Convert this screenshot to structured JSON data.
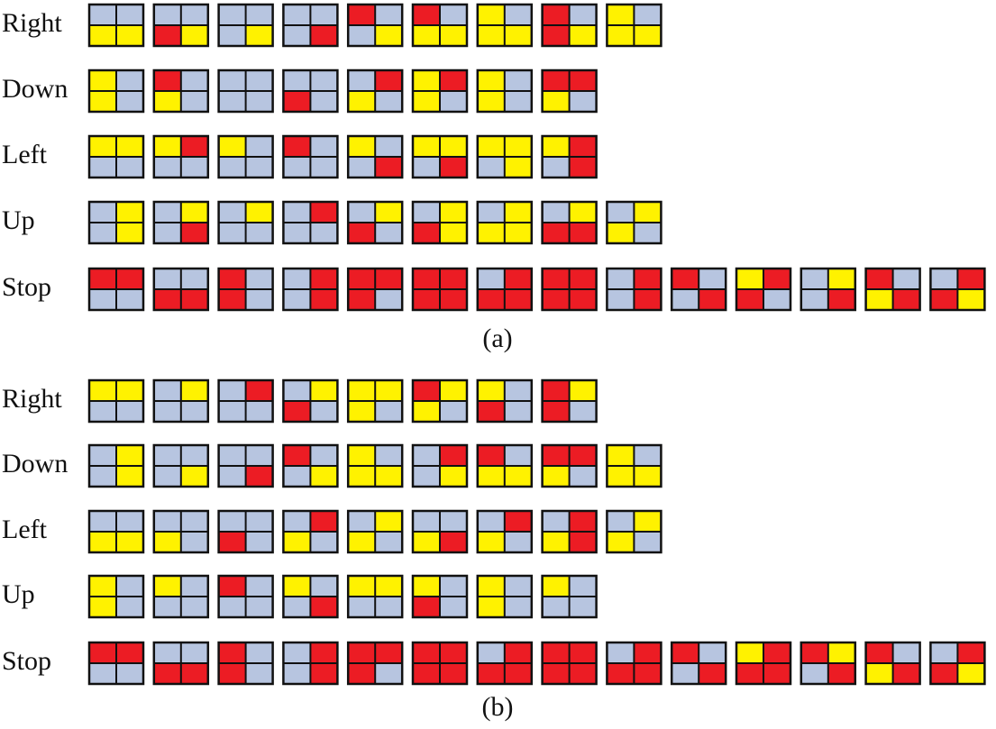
{
  "colors": {
    "B": "#b7c5e0",
    "Y": "#fff200",
    "R": "#ec1c24"
  },
  "panels": [
    {
      "caption": "(a)",
      "rows": [
        {
          "label": "Right",
          "grids": [
            "BBYY",
            "BBRY",
            "BBBY",
            "BBBR",
            "RBBY",
            "RBYY",
            "YBYY",
            "RBRY",
            "YBYY"
          ]
        },
        {
          "label": "Down",
          "grids": [
            "YBYB",
            "RBYB",
            "BBBB",
            "BBRB",
            "BRYB",
            "YRYB",
            "YBYB",
            "RRYB"
          ]
        },
        {
          "label": "Left",
          "grids": [
            "YYBB",
            "YRBB",
            "YBBB",
            "RBBB",
            "YBBR",
            "YYBR",
            "YYBY",
            "YRBR"
          ]
        },
        {
          "label": "Up",
          "grids": [
            "BYBY",
            "BYBR",
            "BYBB",
            "BRBB",
            "BYRB",
            "BYRY",
            "BYYY",
            "BYRR",
            "BYYB"
          ]
        },
        {
          "label": "Stop",
          "grids": [
            "RRBB",
            "BBRR",
            "RBRB",
            "BRBR",
            "RRRB",
            "RRRR",
            "BRRR",
            "RRRR",
            "BRBR",
            "RBBR",
            "YRRB",
            "BYBR",
            "RBYR",
            "BRRY"
          ]
        }
      ]
    },
    {
      "caption": "(b)",
      "rows": [
        {
          "label": "Right",
          "grids": [
            "YYBB",
            "BYBB",
            "BRBB",
            "BYRB",
            "YYYB",
            "RYYB",
            "YBRB",
            "RYRB"
          ]
        },
        {
          "label": "Down",
          "grids": [
            "BYBY",
            "BBBY",
            "BBBR",
            "RBBY",
            "YBYY",
            "BRBY",
            "RBYY",
            "RRYB",
            "YBYY"
          ]
        },
        {
          "label": "Left",
          "grids": [
            "BBYY",
            "BBYB",
            "BBRB",
            "BRYB",
            "BYYB",
            "BBYR",
            "BRYB",
            "BRYR",
            "BYYB"
          ]
        },
        {
          "label": "Up",
          "grids": [
            "YBYB",
            "YBBB",
            "RBBB",
            "YBBR",
            "YYBB",
            "YBRB",
            "YBYB",
            "YBBB"
          ]
        },
        {
          "label": "Stop",
          "grids": [
            "RRBB",
            "BBRR",
            "RBRB",
            "BRBR",
            "RRRB",
            "RRRR",
            "BRRR",
            "RRRR",
            "BRRR",
            "RBBR",
            "YRRR",
            "RYBR",
            "RBYR",
            "BRRY"
          ]
        }
      ]
    }
  ]
}
